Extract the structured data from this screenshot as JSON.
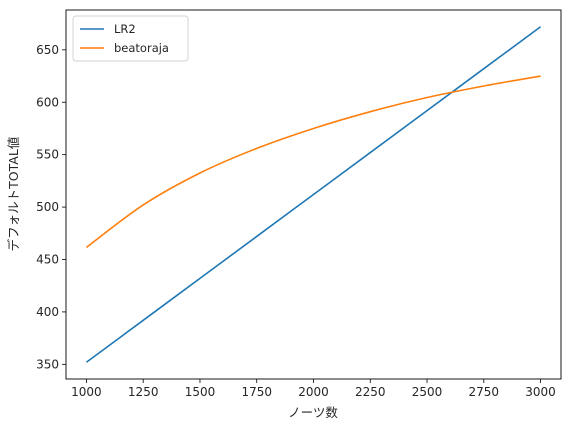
{
  "chart_data": {
    "type": "line",
    "xlabel": "ノーツ数",
    "ylabel": "デフォルトTOTAL値",
    "xlim": [
      910,
      3090
    ],
    "ylim": [
      336,
      688
    ],
    "xticks": [
      1000,
      1250,
      1500,
      1750,
      2000,
      2250,
      2500,
      2750,
      3000
    ],
    "yticks": [
      350,
      400,
      450,
      500,
      550,
      600,
      650
    ],
    "grid": false,
    "legend_position": "top-left",
    "series": [
      {
        "name": "LR2",
        "color": "#1f77b4",
        "x": [
          1000,
          1250,
          1500,
          1750,
          2000,
          2250,
          2500,
          2750,
          3000
        ],
        "y": [
          352,
          392,
          432,
          472,
          512,
          552,
          592,
          632,
          672
        ]
      },
      {
        "name": "beatoraja",
        "color": "#ff7f0e",
        "x": [
          1000,
          1250,
          1500,
          1750,
          2000,
          2250,
          2500,
          2750,
          3000
        ],
        "y": [
          461.5,
          502,
          532.5,
          556,
          575,
          591,
          604.5,
          615.5,
          625
        ]
      }
    ]
  }
}
